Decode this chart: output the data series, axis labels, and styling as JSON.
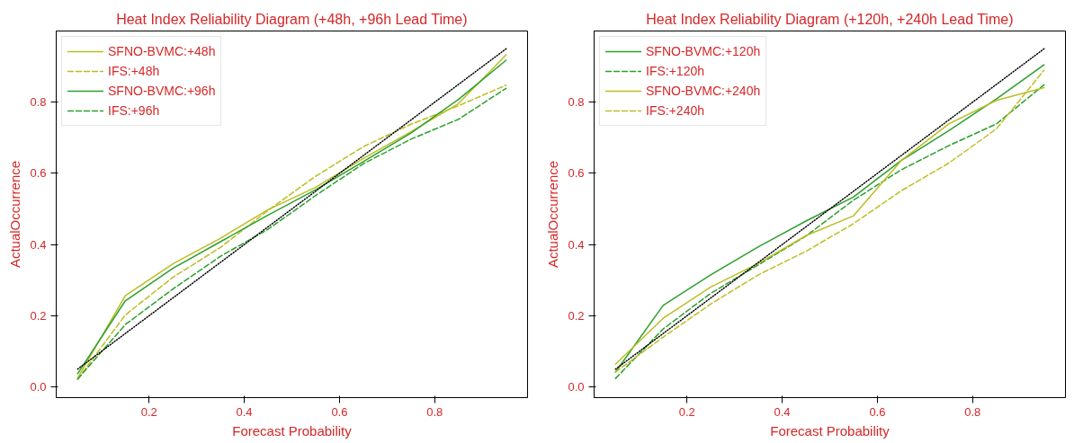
{
  "chart_data": [
    {
      "type": "line",
      "title": "Heat Index Reliability Diagram (+48h, +96h Lead Time)",
      "xlabel": "Forecast Probability",
      "ylabel": "ActualOccurrence",
      "x": [
        0.05,
        0.15,
        0.25,
        0.35,
        0.45,
        0.55,
        0.65,
        0.75,
        0.85,
        0.95
      ],
      "series": [
        {
          "name": "SFNO-BVMC:+48h",
          "color": "#bcbd22",
          "line_style": "solid",
          "values": [
            0.025,
            0.256,
            0.346,
            0.418,
            0.498,
            0.561,
            0.642,
            0.717,
            0.796,
            0.933
          ]
        },
        {
          "name": "IFS:+48h",
          "color": "#bcbd22",
          "line_style": "dashed",
          "values": [
            0.022,
            0.202,
            0.308,
            0.392,
            0.496,
            0.592,
            0.675,
            0.738,
            0.79,
            0.848
          ]
        },
        {
          "name": "SFNO-BVMC:+96h",
          "color": "#2ca02c",
          "line_style": "solid",
          "values": [
            0.037,
            0.242,
            0.333,
            0.408,
            0.483,
            0.554,
            0.633,
            0.713,
            0.808,
            0.918
          ]
        },
        {
          "name": "IFS:+96h",
          "color": "#2ca02c",
          "line_style": "dashed",
          "values": [
            0.022,
            0.175,
            0.275,
            0.367,
            0.443,
            0.538,
            0.627,
            0.696,
            0.752,
            0.839
          ]
        },
        {
          "color": "#000000",
          "line_style": "dotted",
          "values": [
            0.05,
            0.15,
            0.25,
            0.35,
            0.45,
            0.55,
            0.65,
            0.75,
            0.85,
            0.95
          ]
        }
      ],
      "xlim": [
        0.005,
        0.995
      ],
      "ylim": [
        -0.03,
        1.0
      ],
      "xticks": [
        0.2,
        0.4,
        0.6,
        0.8
      ],
      "yticks": [
        {
          "value": 0,
          "label": "0.0"
        },
        0.2,
        0.4,
        0.6,
        0.8
      ],
      "grid": false,
      "legend": "top left"
    },
    {
      "type": "line",
      "title": "Heat Index Reliability Diagram (+120h, +240h Lead Time)",
      "xlabel": "Forecast Probability",
      "ylabel": "ActualOccurrence",
      "x": [
        0.05,
        0.15,
        0.25,
        0.35,
        0.45,
        0.55,
        0.65,
        0.75,
        0.85,
        0.95
      ],
      "series": [
        {
          "name": "SFNO-BVMC:+120h",
          "color": "#2ca02c",
          "line_style": "solid",
          "values": [
            0.042,
            0.229,
            0.315,
            0.394,
            0.466,
            0.534,
            0.636,
            0.72,
            0.809,
            0.905
          ]
        },
        {
          "name": "IFS:+120h",
          "color": "#2ca02c",
          "line_style": "dashed",
          "values": [
            0.024,
            0.163,
            0.263,
            0.343,
            0.424,
            0.525,
            0.61,
            0.678,
            0.739,
            0.849
          ]
        },
        {
          "name": "SFNO-BVMC:+240h",
          "color": "#bcbd22",
          "line_style": "solid",
          "values": [
            0.064,
            0.193,
            0.281,
            0.347,
            0.425,
            0.481,
            0.636,
            0.739,
            0.805,
            0.841
          ]
        },
        {
          "name": "IFS:+240h",
          "color": "#bcbd22",
          "line_style": "dashed",
          "values": [
            0.042,
            0.14,
            0.233,
            0.315,
            0.381,
            0.459,
            0.551,
            0.629,
            0.725,
            0.89
          ]
        },
        {
          "color": "#000000",
          "line_style": "dotted",
          "values": [
            0.05,
            0.15,
            0.25,
            0.35,
            0.45,
            0.55,
            0.65,
            0.75,
            0.85,
            0.95
          ]
        }
      ],
      "xlim": [
        0.005,
        0.995
      ],
      "ylim": [
        -0.03,
        1.0
      ],
      "xticks": [
        0.2,
        0.4,
        0.6,
        0.8
      ],
      "yticks": [
        {
          "value": 0,
          "label": "0.0"
        },
        0.2,
        0.4,
        0.6,
        0.8
      ],
      "grid": false,
      "legend": "top left"
    }
  ]
}
